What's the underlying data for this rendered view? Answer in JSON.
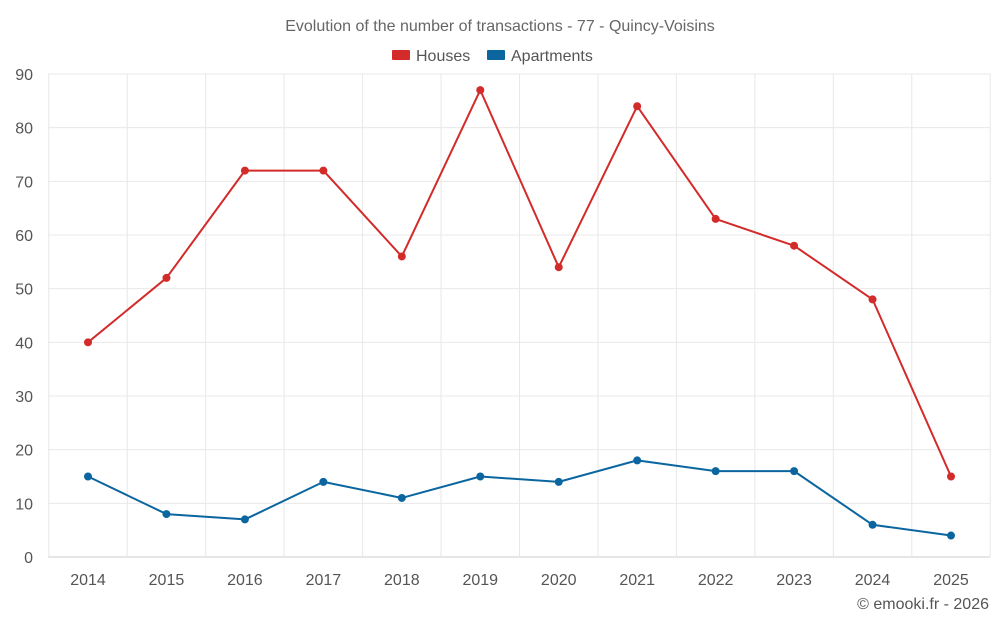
{
  "chart_data": {
    "type": "line",
    "title": "Evolution of the number of transactions - 77 - Quincy-Voisins",
    "categories": [
      "2014",
      "2015",
      "2016",
      "2017",
      "2018",
      "2019",
      "2020",
      "2021",
      "2022",
      "2023",
      "2024",
      "2025"
    ],
    "series": [
      {
        "name": "Houses",
        "color": "#d32a2a",
        "values": [
          40,
          52,
          72,
          72,
          56,
          87,
          54,
          84,
          63,
          58,
          48,
          15
        ]
      },
      {
        "name": "Apartments",
        "color": "#0b66a0",
        "values": [
          15,
          8,
          7,
          14,
          11,
          15,
          14,
          18,
          16,
          16,
          6,
          4
        ]
      }
    ],
    "xlabel": "",
    "ylabel": "",
    "ylim": [
      0,
      90
    ],
    "yticks": [
      0,
      10,
      20,
      30,
      40,
      50,
      60,
      70,
      80,
      90
    ],
    "grid": true,
    "legend_position": "top-center"
  },
  "credit": "© emooki.fr - 2026"
}
